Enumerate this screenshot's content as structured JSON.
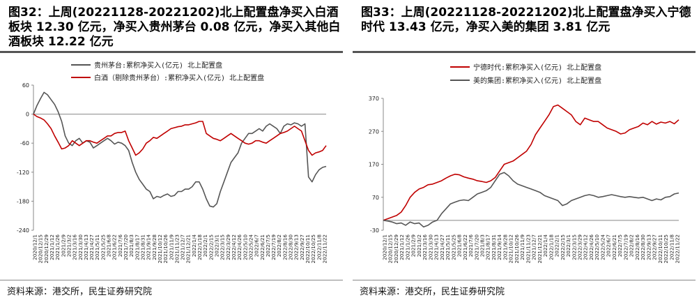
{
  "source_text": "资料来源：港交所，民生证券研究院",
  "colors": {
    "red": "#c00000",
    "gray": "#555555",
    "axis": "#888888"
  },
  "chart_data": [
    {
      "type": "line",
      "title": "图32：上周(20221128-20221202)北上配置盘净买入白酒板块 12.30 亿元，净买入贵州茅台 0.08 亿元，净买入其他白酒板块 12.22 亿元",
      "xlabel": "",
      "ylabel": "",
      "ylim": [
        -240,
        60
      ],
      "yticks": [
        60,
        0,
        -60,
        -120,
        -180,
        -240
      ],
      "x_tick_labels": [
        "2020/12/1",
        "2020/12/15",
        "2020/12/29",
        "2021/1/12",
        "2021/1/26",
        "2021/2/9",
        "2021/3/2",
        "2021/3/16",
        "2021/3/30",
        "2021/4/13",
        "2021/4/27",
        "2021/5/11",
        "2021/5/25",
        "2021/6/8",
        "2021/6/22",
        "2021/7/6",
        "2021/7/20",
        "2021/8/3",
        "2021/8/17",
        "2021/8/31",
        "2021/9/14",
        "2021/9/28",
        "2021/10/12",
        "2021/10/26",
        "2021/11/9",
        "2021/11/23",
        "2021/12/7",
        "2021/12/21",
        "2022/1/4",
        "2022/1/18",
        "2022/2/1",
        "2022/2/15",
        "2022/3/1",
        "2022/3/15",
        "2022/3/29",
        "2022/4/12",
        "2022/4/26",
        "2022/5/10",
        "2022/5/24",
        "2022/6/7",
        "2022/6/21",
        "2022/7/5",
        "2022/7/19",
        "2022/8/2",
        "2022/8/16",
        "2022/8/30",
        "2022/9/13",
        "2022/9/27",
        "2022/10/11",
        "2022/10/25",
        "2022/11/8",
        "2022/11/22"
      ],
      "series": [
        {
          "name": "贵州茅台:累积净买入(亿元) 北上配置盘",
          "color": "#555555",
          "values": [
            0,
            18,
            32,
            45,
            40,
            30,
            20,
            5,
            -15,
            -45,
            -60,
            -65,
            -55,
            -50,
            -60,
            -55,
            -58,
            -70,
            -65,
            -60,
            -55,
            -50,
            -55,
            -62,
            -58,
            -60,
            -65,
            -75,
            -100,
            -120,
            -135,
            -145,
            -155,
            -160,
            -175,
            -170,
            -172,
            -168,
            -165,
            -170,
            -168,
            -160,
            -160,
            -155,
            -155,
            -150,
            -140,
            -140,
            -155,
            -175,
            -190,
            -192,
            -185,
            -160,
            -140,
            -120,
            -100,
            -90,
            -80,
            -60,
            -50,
            -40,
            -40,
            -35,
            -30,
            -35,
            -25,
            -20,
            -25,
            -30,
            -40,
            -25,
            -20,
            -22,
            -18,
            -20,
            -25,
            -20,
            -130,
            -140,
            -125,
            -115,
            -110,
            -108
          ]
        },
        {
          "name": "白酒（剔除贵州茅台）:累积净买入(亿元) 北上配置盘",
          "color": "#c00000",
          "values": [
            0,
            -5,
            -8,
            -12,
            -20,
            -30,
            -45,
            -58,
            -72,
            -70,
            -65,
            -55,
            -60,
            -65,
            -60,
            -55,
            -55,
            -58,
            -60,
            -55,
            -50,
            -45,
            -45,
            -40,
            -38,
            -38,
            -35,
            -55,
            -70,
            -85,
            -80,
            -72,
            -60,
            -55,
            -48,
            -50,
            -45,
            -40,
            -35,
            -30,
            -28,
            -26,
            -25,
            -22,
            -22,
            -20,
            -18,
            -15,
            -15,
            -40,
            -45,
            -50,
            -52,
            -55,
            -50,
            -45,
            -40,
            -45,
            -50,
            -55,
            -60,
            -62,
            -60,
            -55,
            -55,
            -58,
            -60,
            -55,
            -50,
            -45,
            -40,
            -38,
            -35,
            -30,
            -25,
            -30,
            -35,
            -55,
            -75,
            -85,
            -80,
            -78,
            -75,
            -65
          ]
        }
      ]
    },
    {
      "type": "line",
      "title": "图33：上周(20221128-20221202)北上配置盘净买入宁德时代 13.43 亿元，净买入美的集团 3.81 亿元",
      "xlabel": "",
      "ylabel": "",
      "ylim": [
        -30,
        370
      ],
      "yticks": [
        370,
        270,
        170,
        70,
        -30
      ],
      "x_tick_labels": [
        "2020/12/1",
        "2020/12/15",
        "2020/12/29",
        "2021/1/12",
        "2021/1/26",
        "2021/2/9",
        "2021/3/2",
        "2021/3/16",
        "2021/3/30",
        "2021/4/13",
        "2021/4/27",
        "2021/5/11",
        "2021/5/25",
        "2021/6/8",
        "2021/6/22",
        "2021/7/6",
        "2021/7/20",
        "2021/8/3",
        "2021/8/17",
        "2021/8/31",
        "2021/9/14",
        "2021/9/28",
        "2021/10/12",
        "2021/10/26",
        "2021/11/9",
        "2021/11/23",
        "2021/12/7",
        "2021/12/21",
        "2022/1/4",
        "2022/1/18",
        "2022/2/1",
        "2022/2/15",
        "2022/3/1",
        "2022/3/15",
        "2022/3/29",
        "2022/4/12",
        "2022/4/26",
        "2022/5/10",
        "2022/5/24",
        "2022/6/7",
        "2022/6/21",
        "2022/7/5",
        "2022/7/19",
        "2022/8/2",
        "2022/8/16",
        "2022/8/30",
        "2022/9/13",
        "2022/9/27",
        "2022/10/11",
        "2022/10/25",
        "2022/11/8",
        "2022/11/22"
      ],
      "series": [
        {
          "name": "宁德时代:累积净买入(亿元) 北上配置盘",
          "color": "#c00000",
          "values": [
            0,
            5,
            10,
            15,
            25,
            45,
            70,
            85,
            95,
            100,
            108,
            110,
            115,
            120,
            128,
            135,
            140,
            138,
            132,
            128,
            125,
            120,
            118,
            115,
            120,
            130,
            150,
            170,
            175,
            180,
            190,
            200,
            210,
            230,
            260,
            280,
            300,
            320,
            345,
            350,
            340,
            330,
            320,
            300,
            290,
            310,
            305,
            300,
            300,
            290,
            280,
            275,
            270,
            262,
            265,
            275,
            280,
            285,
            295,
            290,
            300,
            292,
            298,
            295,
            300,
            293,
            305
          ]
        },
        {
          "name": "美的集团:累积净买入(亿元) 北上配置盘",
          "color": "#555555",
          "values": [
            0,
            -2,
            -5,
            -10,
            -8,
            -15,
            -5,
            -10,
            -8,
            -20,
            -15,
            -5,
            0,
            20,
            35,
            50,
            55,
            60,
            62,
            60,
            70,
            80,
            85,
            90,
            100,
            120,
            140,
            145,
            135,
            120,
            110,
            105,
            100,
            95,
            90,
            85,
            75,
            70,
            65,
            60,
            45,
            50,
            60,
            65,
            70,
            75,
            78,
            75,
            70,
            72,
            75,
            78,
            75,
            72,
            70,
            72,
            70,
            68,
            70,
            65,
            60,
            65,
            62,
            70,
            72,
            80,
            83
          ]
        }
      ]
    }
  ]
}
